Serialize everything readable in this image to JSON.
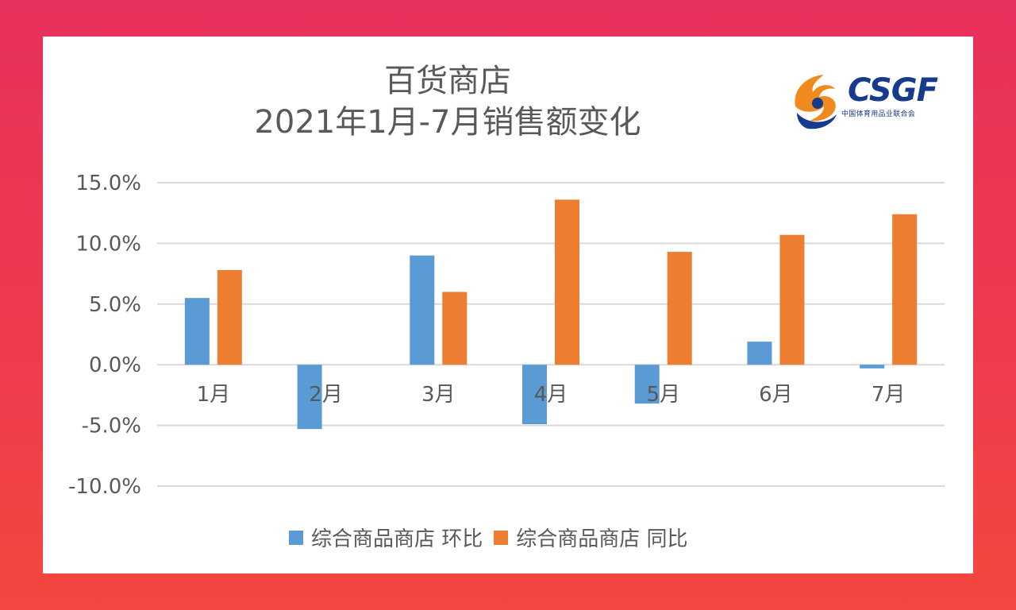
{
  "title": {
    "line1": "百货商店",
    "line2": "2021年1月-7月销售额变化"
  },
  "logo": {
    "text": "CSGF",
    "subtitle": "中国体育用品业联合会"
  },
  "colors": {
    "mom": "#5b9bd5",
    "yoy": "#ed7d31",
    "grid": "#d9d9d9",
    "text": "#595959"
  },
  "chart_data": {
    "type": "bar",
    "categories": [
      "1月",
      "2月",
      "3月",
      "4月",
      "5月",
      "6月",
      "7月"
    ],
    "series": [
      {
        "name": "综合商品商店 环比",
        "values": [
          5.5,
          -5.3,
          9.0,
          -4.9,
          -3.2,
          1.9,
          -0.3
        ]
      },
      {
        "name": "综合商品商店 同比",
        "values": [
          7.8,
          null,
          6.0,
          13.6,
          9.3,
          10.7,
          12.4
        ]
      }
    ],
    "yticks": [
      "15.0%",
      "10.0%",
      "5.0%",
      "0.0%",
      "-5.0%",
      "-10.0%"
    ],
    "ylim": [
      -10,
      15
    ],
    "grid": true,
    "legend_position": "bottom"
  }
}
